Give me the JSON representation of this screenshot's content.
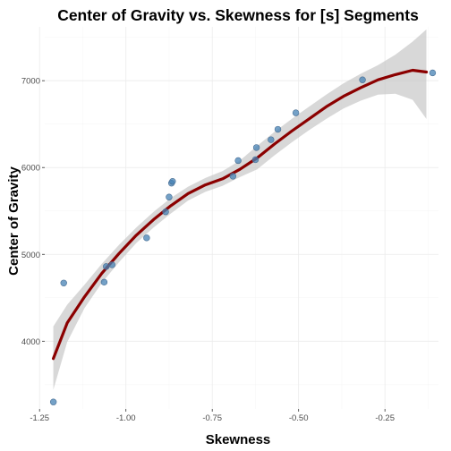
{
  "chart_data": {
    "type": "scatter",
    "title": "Center of Gravity vs. Skewness for [s] Segments",
    "xlabel": "Skewness",
    "ylabel": "Center of Gravity",
    "xlim": [
      -1.235,
      -0.095
    ],
    "ylim": [
      3220,
      7620
    ],
    "x_ticks": [
      -1.25,
      -1.0,
      -0.75,
      -0.5,
      -0.25
    ],
    "x_tick_labels": [
      "-1.25",
      "-1.00",
      "-0.75",
      "-0.50",
      "-0.25"
    ],
    "y_ticks": [
      4000,
      5000,
      6000,
      7000
    ],
    "y_tick_labels": [
      "4000",
      "5000",
      "6000",
      "7000"
    ],
    "grid": true,
    "points": {
      "x": [
        -1.21,
        -1.18,
        -1.063,
        -1.057,
        -1.04,
        -0.94,
        -0.885,
        -0.875,
        -0.868,
        -0.865,
        -0.69,
        -0.675,
        -0.625,
        -0.622,
        -0.58,
        -0.56,
        -0.508,
        -0.315,
        -0.112
      ],
      "y": [
        3300,
        4670,
        4680,
        4860,
        4880,
        5190,
        5490,
        5660,
        5820,
        5840,
        5900,
        6080,
        6090,
        6230,
        6320,
        6440,
        6630,
        7010,
        7090
      ]
    },
    "smooth": {
      "x": [
        -1.21,
        -1.17,
        -1.12,
        -1.07,
        -1.02,
        -0.97,
        -0.92,
        -0.87,
        -0.82,
        -0.77,
        -0.72,
        -0.67,
        -0.62,
        -0.57,
        -0.52,
        -0.47,
        -0.42,
        -0.37,
        -0.32,
        -0.27,
        -0.22,
        -0.17,
        -0.13
      ],
      "y": [
        3800,
        4210,
        4510,
        4780,
        5010,
        5220,
        5400,
        5560,
        5700,
        5800,
        5870,
        5980,
        6110,
        6270,
        6420,
        6560,
        6700,
        6820,
        6920,
        7010,
        7070,
        7120,
        7100
      ],
      "lower": [
        3440,
        3990,
        4380,
        4670,
        4910,
        5130,
        5310,
        5470,
        5620,
        5720,
        5790,
        5890,
        5980,
        6140,
        6290,
        6430,
        6560,
        6680,
        6770,
        6840,
        6850,
        6780,
        6560
      ],
      "upper": [
        4170,
        4420,
        4650,
        4890,
        5110,
        5310,
        5490,
        5650,
        5780,
        5880,
        5960,
        6080,
        6250,
        6410,
        6560,
        6700,
        6840,
        6970,
        7080,
        7180,
        7300,
        7450,
        7590
      ]
    },
    "colors": {
      "points": "#4682b4",
      "line": "#8b0000",
      "band": "#c8c8c8"
    }
  }
}
